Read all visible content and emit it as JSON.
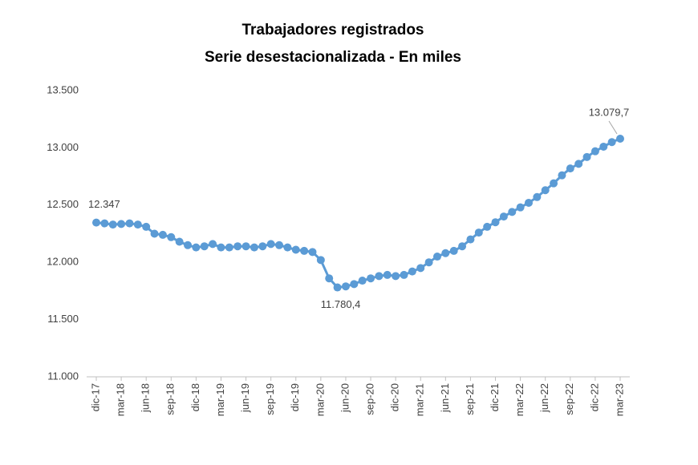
{
  "chart_data": {
    "type": "line",
    "title": "Trabajadores registrados",
    "subtitle": "Serie desestacionalizada - En miles",
    "categories": [
      "dic-17",
      null,
      null,
      "mar-18",
      null,
      null,
      "jun-18",
      null,
      null,
      "sep-18",
      null,
      null,
      "dic-18",
      null,
      null,
      "mar-19",
      null,
      null,
      "jun-19",
      null,
      null,
      "sep-19",
      null,
      null,
      "dic-19",
      null,
      null,
      "mar-20",
      null,
      null,
      "jun-20",
      null,
      null,
      "sep-20",
      null,
      null,
      "dic-20",
      null,
      null,
      "mar-21",
      null,
      null,
      "jun-21",
      null,
      null,
      "sep-21",
      null,
      null,
      "dic-21",
      null,
      null,
      "mar-22",
      null,
      null,
      "jun-22",
      null,
      null,
      "sep-22",
      null,
      null,
      "dic-22",
      null,
      null,
      "mar-23"
    ],
    "series": [
      {
        "name": "Trabajadores registrados",
        "color": "#5b9bd5",
        "values": [
          12347,
          12340,
          12330,
          12335,
          12340,
          12330,
          12310,
          12250,
          12240,
          12220,
          12180,
          12150,
          12130,
          12140,
          12160,
          12130,
          12130,
          12140,
          12140,
          12130,
          12140,
          12160,
          12150,
          12130,
          12110,
          12100,
          12090,
          12020,
          11860,
          11780.4,
          11790,
          11810,
          11840,
          11860,
          11880,
          11890,
          11880,
          11890,
          11920,
          11950,
          12000,
          12050,
          12080,
          12100,
          12140,
          12200,
          12260,
          12310,
          12350,
          12400,
          12440,
          12480,
          12520,
          12570,
          12630,
          12690,
          12760,
          12820,
          12860,
          12920,
          12970,
          13010,
          13050,
          13079.7
        ],
        "value_labels": [
          "12.347",
          null,
          null,
          null,
          null,
          null,
          null,
          null,
          null,
          null,
          null,
          null,
          null,
          null,
          null,
          null,
          null,
          null,
          null,
          null,
          null,
          null,
          null,
          null,
          null,
          null,
          null,
          null,
          null,
          "11.780,4",
          null,
          null,
          null,
          null,
          null,
          null,
          null,
          null,
          null,
          null,
          null,
          null,
          null,
          null,
          null,
          null,
          null,
          null,
          null,
          null,
          null,
          null,
          null,
          null,
          null,
          null,
          null,
          null,
          null,
          null,
          null,
          null,
          null,
          "13.079,7"
        ]
      }
    ],
    "ylim": [
      11000,
      13500
    ],
    "yticks": [
      {
        "value": 11000,
        "label": "11.000"
      },
      {
        "value": 11500,
        "label": "11.500"
      },
      {
        "value": 12000,
        "label": "12.000"
      },
      {
        "value": 12500,
        "label": "12.500"
      },
      {
        "value": 13000,
        "label": "13.000"
      },
      {
        "value": 13500,
        "label": "13.500"
      }
    ],
    "grid": false
  }
}
